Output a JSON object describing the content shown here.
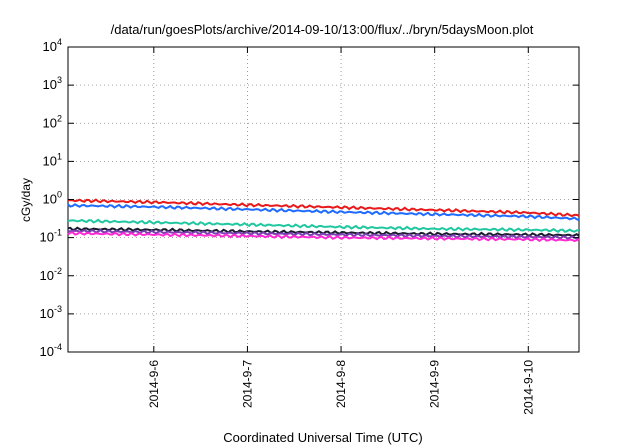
{
  "chart_data": {
    "type": "line",
    "title": "/data/run/goesPlots/archive/2014-09-10/13:00/flux/../bryn/5daysMoon.plot",
    "xlabel": "Coordinated Universal Time (UTC)",
    "ylabel": "cGy/day",
    "yscale": "log",
    "ylim": [
      0.0001,
      10000
    ],
    "xlim": [
      "2014-09-05 02:00",
      "2014-09-10 13:00"
    ],
    "grid": true,
    "legend": "none",
    "y_ticks": [
      {
        "base": "10",
        "exp": "-4",
        "value": 0.0001
      },
      {
        "base": "10",
        "exp": "-3",
        "value": 0.001
      },
      {
        "base": "10",
        "exp": "-2",
        "value": 0.01
      },
      {
        "base": "10",
        "exp": "-1",
        "value": 0.1
      },
      {
        "base": "10",
        "exp": "0",
        "value": 1
      },
      {
        "base": "10",
        "exp": "1",
        "value": 10
      },
      {
        "base": "10",
        "exp": "2",
        "value": 100
      },
      {
        "base": "10",
        "exp": "3",
        "value": 1000
      },
      {
        "base": "10",
        "exp": "4",
        "value": 10000
      }
    ],
    "x_ticks": [
      {
        "label": "2014-9-6",
        "date": "2014-09-06 00:00"
      },
      {
        "label": "2014-9-7",
        "date": "2014-09-07 00:00"
      },
      {
        "label": "2014-9-8",
        "date": "2014-09-08 00:00"
      },
      {
        "label": "2014-9-9",
        "date": "2014-09-09 00:00"
      },
      {
        "label": "2014-9-10",
        "date": "2014-09-10 00:00"
      }
    ],
    "series": [
      {
        "color": "#e8191a",
        "x": [
          "2014-09-05 02:00",
          "2014-09-06 00:00",
          "2014-09-07 00:00",
          "2014-09-08 00:00",
          "2014-09-09 00:00",
          "2014-09-10 00:00",
          "2014-09-10 13:00"
        ],
        "values": [
          0.95,
          0.85,
          0.72,
          0.62,
          0.53,
          0.45,
          0.38
        ]
      },
      {
        "color": "#1f6bff",
        "x": [
          "2014-09-05 02:00",
          "2014-09-06 00:00",
          "2014-09-07 00:00",
          "2014-09-08 00:00",
          "2014-09-09 00:00",
          "2014-09-10 00:00",
          "2014-09-10 13:00"
        ],
        "values": [
          0.7,
          0.64,
          0.55,
          0.47,
          0.41,
          0.36,
          0.31
        ]
      },
      {
        "color": "#20c7a0",
        "x": [
          "2014-09-05 02:00",
          "2014-09-06 00:00",
          "2014-09-07 00:00",
          "2014-09-08 00:00",
          "2014-09-09 00:00",
          "2014-09-10 00:00",
          "2014-09-10 13:00"
        ],
        "values": [
          0.28,
          0.25,
          0.22,
          0.19,
          0.17,
          0.16,
          0.15
        ]
      },
      {
        "color": "#1a1a2e",
        "x": [
          "2014-09-05 02:00",
          "2014-09-06 00:00",
          "2014-09-07 00:00",
          "2014-09-08 00:00",
          "2014-09-09 00:00",
          "2014-09-10 00:00",
          "2014-09-10 13:00"
        ],
        "values": [
          0.17,
          0.16,
          0.145,
          0.135,
          0.125,
          0.12,
          0.115
        ]
      },
      {
        "color": "#7a3fb0",
        "x": [
          "2014-09-05 02:00",
          "2014-09-06 00:00",
          "2014-09-07 00:00",
          "2014-09-08 00:00",
          "2014-09-09 00:00",
          "2014-09-10 00:00",
          "2014-09-10 13:00"
        ],
        "values": [
          0.15,
          0.14,
          0.13,
          0.12,
          0.11,
          0.105,
          0.1
        ]
      },
      {
        "color": "#ff2ad4",
        "x": [
          "2014-09-05 02:00",
          "2014-09-06 00:00",
          "2014-09-07 00:00",
          "2014-09-08 00:00",
          "2014-09-09 00:00",
          "2014-09-10 00:00",
          "2014-09-10 13:00"
        ],
        "values": [
          0.13,
          0.12,
          0.11,
          0.1,
          0.095,
          0.09,
          0.085
        ]
      }
    ]
  }
}
